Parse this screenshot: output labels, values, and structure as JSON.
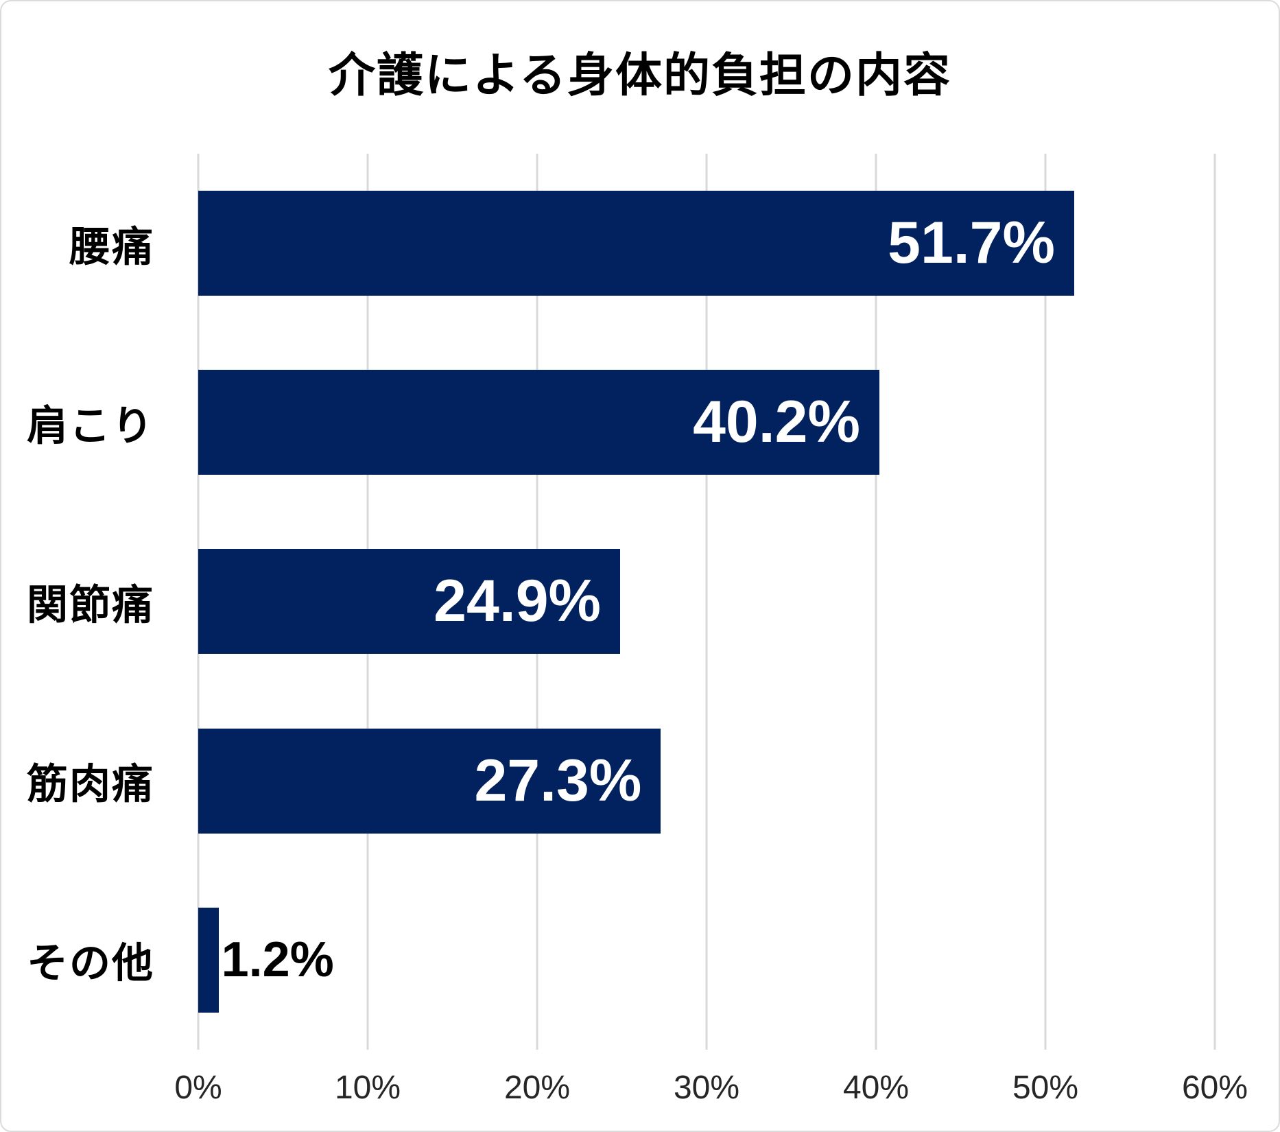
{
  "chart_data": {
    "type": "bar",
    "orientation": "horizontal",
    "title": "介護による身体的負担の内容",
    "categories": [
      "腰痛",
      "肩こり",
      "関節痛",
      "筋肉痛",
      "その他"
    ],
    "values": [
      51.7,
      40.2,
      24.9,
      27.3,
      1.2
    ],
    "value_labels": [
      "51.7%",
      "40.2%",
      "24.9%",
      "27.3%",
      "1.2%"
    ],
    "x_ticks": [
      "0%",
      "10%",
      "20%",
      "30%",
      "40%",
      "50%",
      "60%"
    ],
    "x_tick_values": [
      0,
      10,
      20,
      30,
      40,
      50,
      60
    ],
    "xlim": [
      0,
      60
    ],
    "xlabel": "",
    "ylabel": "",
    "grid": "vertical-only",
    "legend": "none",
    "value_label_placement": "inside-end, outside-end for smallest bar",
    "colors": {
      "bar": "#02225F",
      "value_label_inside": "#FFFFFF",
      "value_label_outside": "#000000",
      "gridline": "#D9D9D9",
      "tick_label": "#262626",
      "title": "#000000",
      "category_label": "#000000",
      "background": "#FFFFFF",
      "frame_border": "#DBDBDB"
    }
  }
}
